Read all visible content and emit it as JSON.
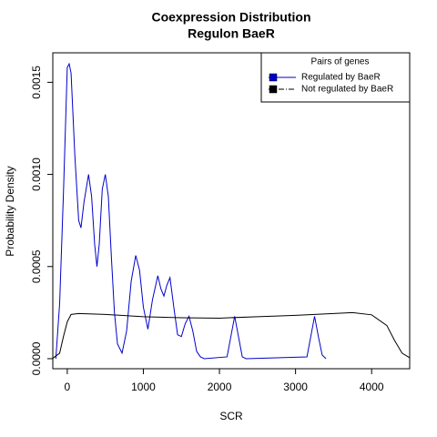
{
  "chart_data": {
    "type": "line",
    "title": "Coexpression Distribution",
    "subtitle": "Regulon BaeR",
    "x_label": "SCR",
    "y_label": "Probability Density",
    "xlim": [
      -190,
      4500
    ],
    "ylim": [
      -5.45e-05,
      0.00166
    ],
    "xticks": [
      0,
      1000,
      2000,
      3000,
      4000
    ],
    "yticks": [
      {
        "value": 0,
        "label": "0.0000"
      },
      {
        "value": 0.0005,
        "label": "0.0005"
      },
      {
        "value": 0.001,
        "label": "0.0010"
      },
      {
        "value": 0.0015,
        "label": "0.0015"
      }
    ],
    "legend_title": "Pairs of genes",
    "legend_position": "top-right",
    "series": [
      {
        "name": "Regulated by  BaeR",
        "color": "#0000cc",
        "dash": "solid",
        "x": [
          -150,
          -100,
          -50,
          0,
          25,
          50,
          100,
          150,
          180,
          220,
          280,
          320,
          360,
          390,
          420,
          460,
          500,
          540,
          580,
          620,
          660,
          720,
          780,
          840,
          900,
          950,
          1000,
          1060,
          1120,
          1190,
          1230,
          1270,
          1310,
          1350,
          1400,
          1450,
          1500,
          1550,
          1600,
          1650,
          1700,
          1750,
          1800,
          2100,
          2150,
          2200,
          2250,
          2300,
          2350,
          3150,
          3200,
          3250,
          3300,
          3350,
          3400
        ],
        "values": [
          0,
          0.0003,
          0.0009,
          0.00158,
          0.0016,
          0.00155,
          0.0011,
          0.00075,
          0.00071,
          0.00085,
          0.001,
          0.00088,
          0.00062,
          0.0005,
          0.00062,
          0.00092,
          0.001,
          0.00088,
          0.00055,
          0.00025,
          8e-05,
          3e-05,
          0.00015,
          0.00042,
          0.00056,
          0.00048,
          0.00028,
          0.00016,
          0.00032,
          0.00045,
          0.00038,
          0.00034,
          0.0004,
          0.00044,
          0.00028,
          0.00013,
          0.00012,
          0.00019,
          0.00023,
          0.00015,
          4e-05,
          1e-05,
          0,
          1e-05,
          0.00012,
          0.00023,
          0.00012,
          1e-05,
          0,
          1e-05,
          0.00012,
          0.00023,
          0.00012,
          2e-05,
          0
        ]
      },
      {
        "name": "Not regulated by  BaeR",
        "color": "#000000",
        "dash": "dashdot",
        "x": [
          -190,
          -100,
          -50,
          0,
          50,
          150,
          500,
          1000,
          1500,
          2000,
          2500,
          3000,
          3500,
          3750,
          4000,
          4200,
          4300,
          4400,
          4500
        ],
        "values": [
          2e-06,
          3e-05,
          0.00012,
          0.0002,
          0.00024,
          0.000245,
          0.00024,
          0.000228,
          0.000222,
          0.00022,
          0.000228,
          0.000235,
          0.000245,
          0.00025,
          0.000238,
          0.00018,
          0.0001,
          3e-05,
          5e-06
        ]
      }
    ]
  }
}
